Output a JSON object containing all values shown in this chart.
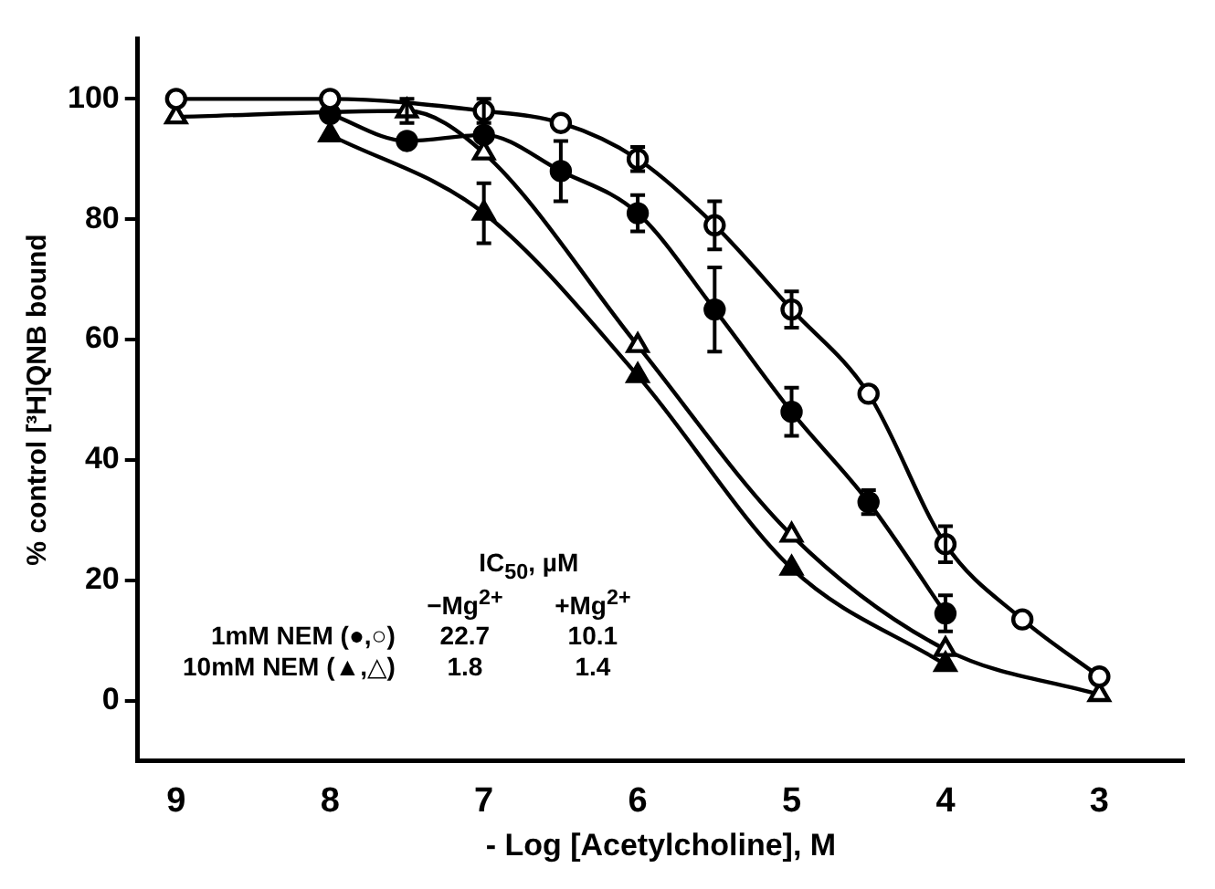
{
  "chart_data": {
    "type": "line",
    "xlabel": "- Log [Acetylcholine], M",
    "ylabel": "% control [³H]QNB bound",
    "xlim": [
      9.25,
      2.45
    ],
    "xticks": [
      9,
      8,
      7,
      6,
      5,
      4,
      3
    ],
    "ylim": [
      -10,
      110
    ],
    "yticks": [
      0,
      20,
      40,
      60,
      80,
      100
    ],
    "grid": false,
    "legend": false,
    "line_style": "solid",
    "series": [
      {
        "color": "#000000",
        "marker": "circle",
        "x": [
          9,
          8,
          7,
          6.5,
          6,
          5.5,
          5,
          4.5,
          4,
          3.5,
          3
        ],
        "values": [
          100,
          100,
          98,
          96,
          90,
          79,
          65,
          51,
          26,
          13.5,
          4
        ],
        "errors": [
          null,
          null,
          2,
          null,
          2,
          4,
          3,
          null,
          3,
          null,
          null
        ]
      },
      {
        "color": "#000000",
        "marker": "circle",
        "x": [
          8,
          7.5,
          7,
          6.5,
          6,
          5.5,
          5,
          4.5,
          4
        ],
        "values": [
          97.5,
          93,
          94,
          88,
          81,
          65,
          48,
          33,
          14.5
        ],
        "errors": [
          null,
          null,
          null,
          5,
          3,
          7,
          4,
          2,
          3
        ]
      },
      {
        "color": "#000000",
        "marker": "triangle",
        "x": [
          8,
          7,
          6,
          5,
          4
        ],
        "values": [
          94,
          81,
          54,
          22,
          6
        ],
        "errors": [
          null,
          5,
          null,
          null,
          null
        ]
      },
      {
        "color": "#000000",
        "marker": "triangle",
        "x": [
          9,
          7.5,
          7,
          6,
          5,
          4,
          3
        ],
        "values": [
          97,
          98,
          91,
          59,
          27.5,
          8.5,
          1
        ],
        "errors": [
          null,
          2,
          null,
          null,
          null,
          null,
          null
        ]
      }
    ],
    "annotations": [
      "IC$_{50}$, µM",
      "−Mg$^{2+}$",
      "+Mg$^{2+}$",
      "1mM NEM (●,○)",
      "22.7",
      "10.1",
      "10mM NEM (▲,△)",
      "1.8",
      "1.4"
    ]
  }
}
